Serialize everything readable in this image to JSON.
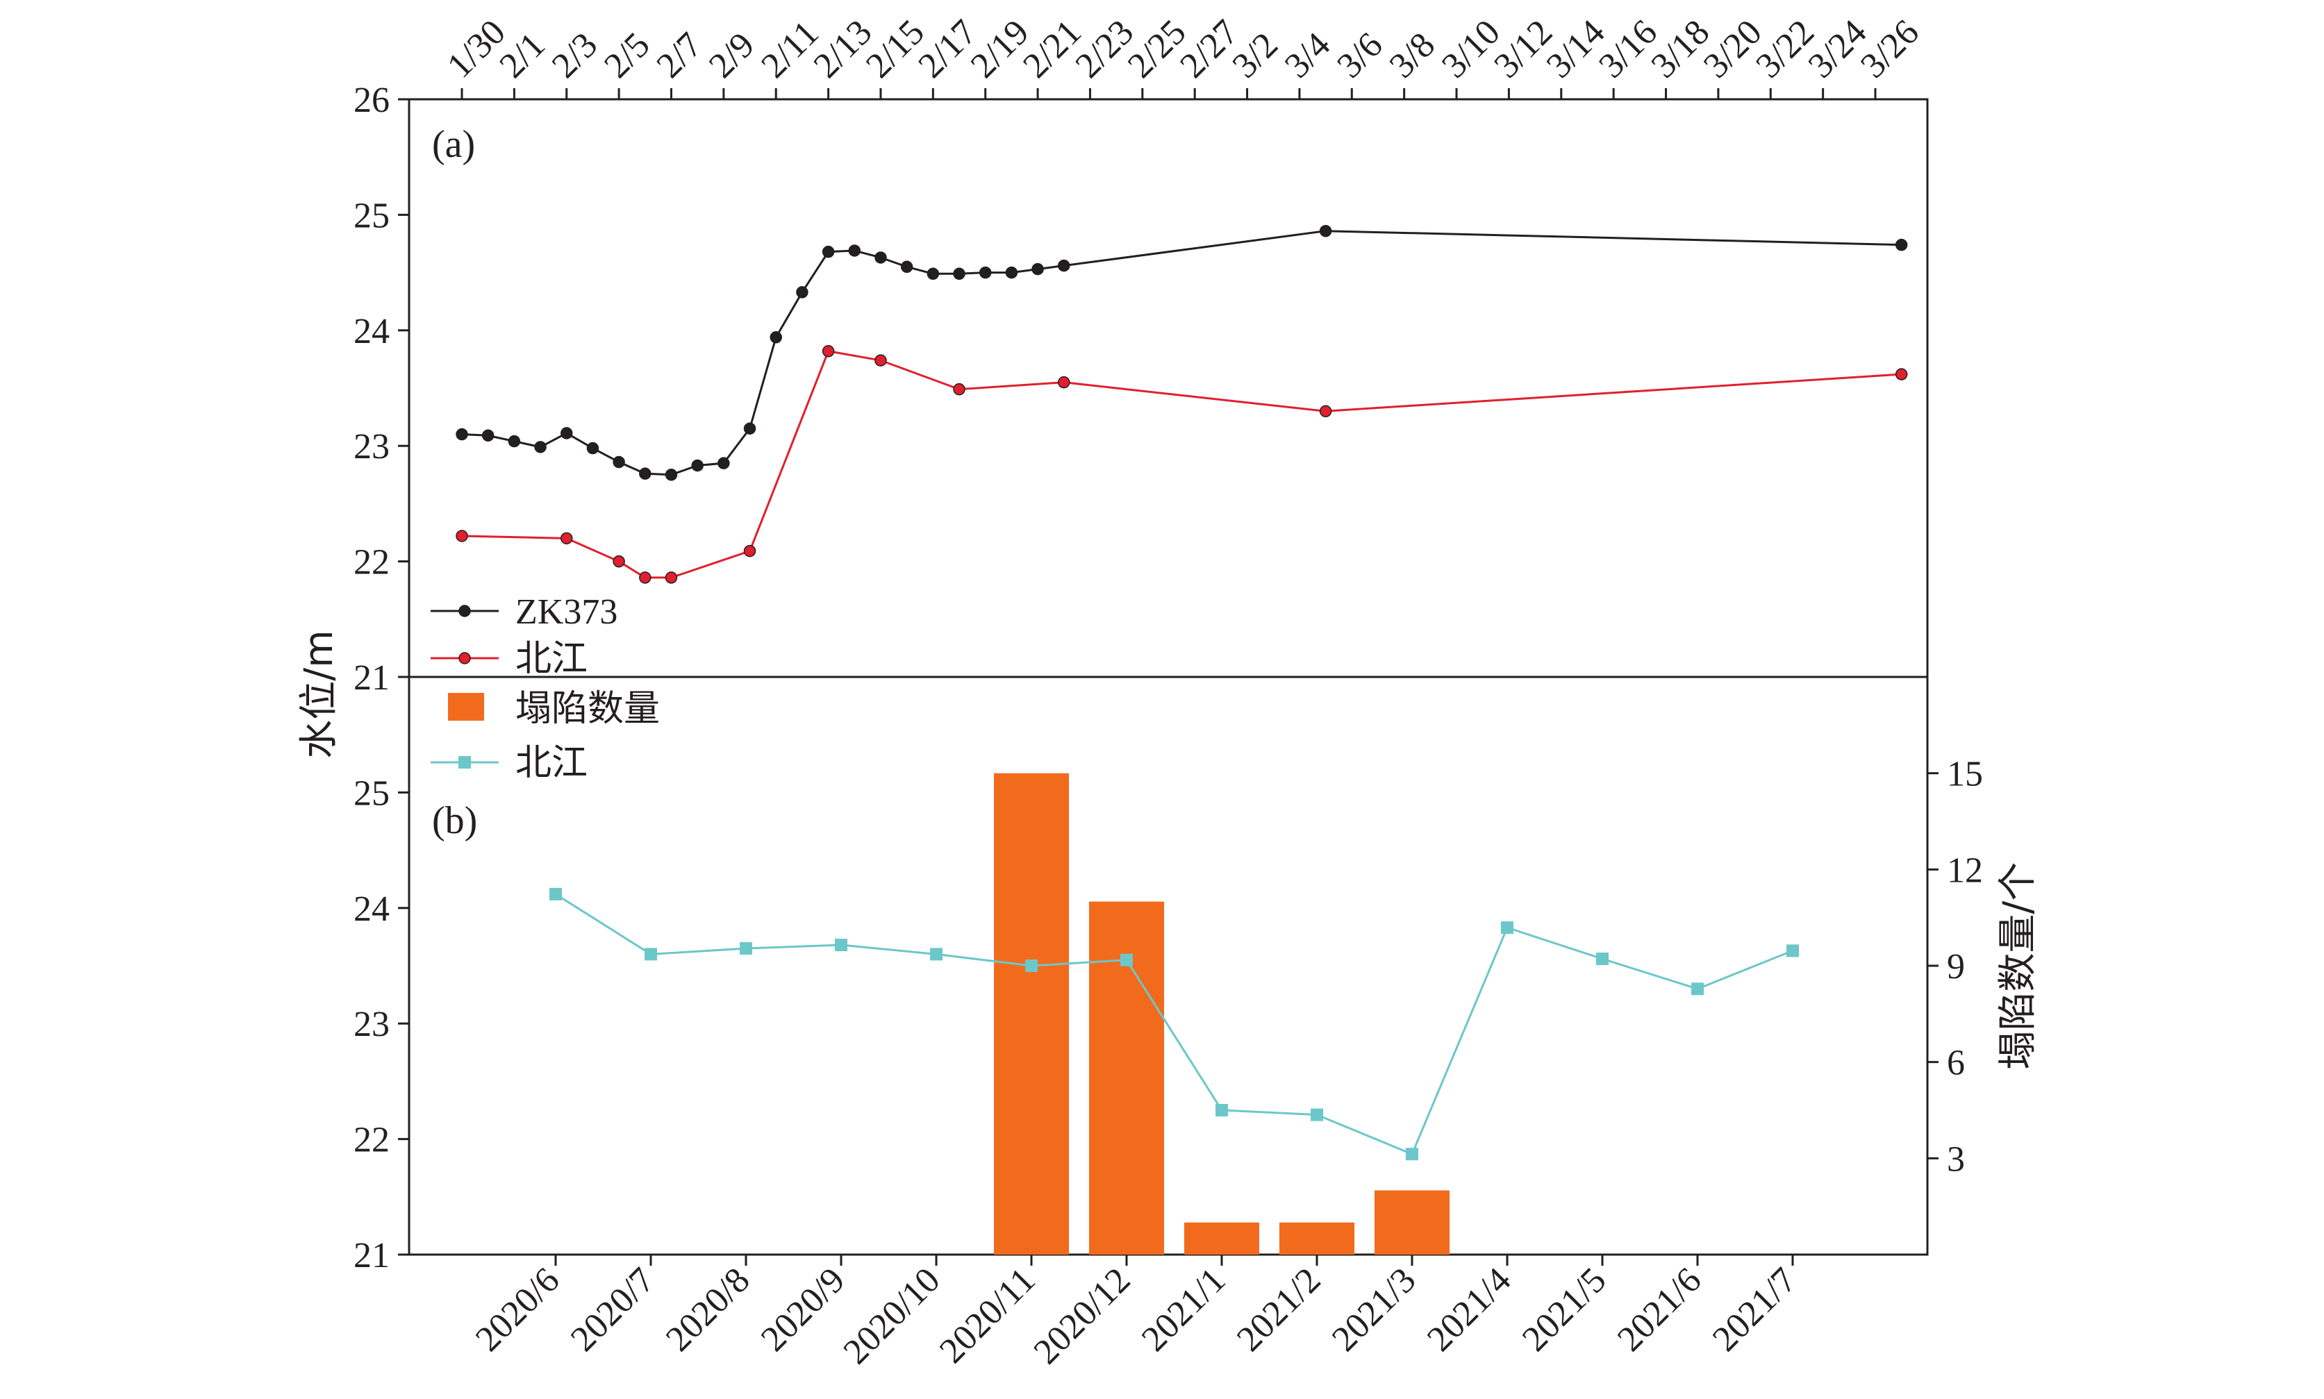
{
  "axis_label_left": "水位/m",
  "axis_label_right": "塌陷数量/个",
  "panel_a_label": "(a)",
  "panel_b_label": "(b)",
  "colors": {
    "zk373": "#231f20",
    "beijiang": "#e0202e",
    "collapse_bar": "#f26b1d",
    "beijiang_monthly": "#6cc7c9"
  },
  "chart_data": [
    {
      "type": "line",
      "panel": "(a)",
      "x_tick_labels": [
        "1/30",
        "2/1",
        "2/3",
        "2/5",
        "2/7",
        "2/9",
        "2/11",
        "2/13",
        "2/15",
        "2/17",
        "2/19",
        "2/21",
        "2/23",
        "2/25",
        "2/27",
        "3/2",
        "3/4",
        "3/6",
        "3/8",
        "3/10",
        "3/12",
        "3/14",
        "3/16",
        "3/18",
        "3/20",
        "3/22",
        "3/24",
        "3/26"
      ],
      "y_ticks": [
        21,
        22,
        23,
        24,
        25,
        26
      ],
      "ylim": [
        21,
        26
      ],
      "legend_position": "bottom-left",
      "series": [
        {
          "name": "ZK373",
          "color": "#231f20",
          "x": [
            0,
            0.5,
            1,
            1.5,
            2,
            2.5,
            3,
            3.5,
            4,
            4.5,
            5,
            5.5,
            6,
            6.5,
            7,
            7.5,
            8,
            8.5,
            9,
            9.5,
            10,
            10.5,
            11,
            11.5,
            16.5,
            27.5
          ],
          "y": [
            23.1,
            23.09,
            23.04,
            22.99,
            23.11,
            22.98,
            22.86,
            22.76,
            22.75,
            22.83,
            22.85,
            23.15,
            23.94,
            24.33,
            24.68,
            24.69,
            24.63,
            24.55,
            24.49,
            24.49,
            24.5,
            24.5,
            24.53,
            24.56,
            24.86,
            24.74
          ]
        },
        {
          "name": "北江",
          "color": "#e0202e",
          "x": [
            0,
            2,
            3,
            3.5,
            4,
            5.5,
            7,
            8,
            9.5,
            11.5,
            16.5,
            27.5
          ],
          "y": [
            22.22,
            22.2,
            22.0,
            21.86,
            21.86,
            22.09,
            23.82,
            23.74,
            23.49,
            23.55,
            23.3,
            23.62
          ]
        }
      ]
    },
    {
      "type": "bar",
      "panel": "(b)",
      "categories": [
        "2020/6",
        "2020/7",
        "2020/8",
        "2020/9",
        "2020/10",
        "2020/11",
        "2020/12",
        "2021/1",
        "2021/2",
        "2021/3",
        "2021/4",
        "2021/5",
        "2021/6",
        "2021/7"
      ],
      "y_ticks_left": [
        21,
        22,
        23,
        24,
        25
      ],
      "ylim_left": [
        21,
        26
      ],
      "y_ticks_right": [
        3,
        6,
        9,
        12,
        15
      ],
      "ylim_right": [
        0,
        18
      ],
      "legend_position": "top-left",
      "series": [
        {
          "name": "塌陷数量",
          "axis": "right",
          "kind": "bar",
          "color": "#f26b1d",
          "values": [
            0,
            0,
            0,
            0,
            0,
            15,
            11,
            1,
            1,
            2,
            0,
            0,
            0,
            0
          ]
        },
        {
          "name": "北江",
          "axis": "left",
          "kind": "line",
          "color": "#6cc7c9",
          "values": [
            24.12,
            23.6,
            23.65,
            23.68,
            23.6,
            23.5,
            23.55,
            22.25,
            22.21,
            21.87,
            23.83,
            23.56,
            23.3,
            23.63
          ]
        }
      ]
    }
  ]
}
